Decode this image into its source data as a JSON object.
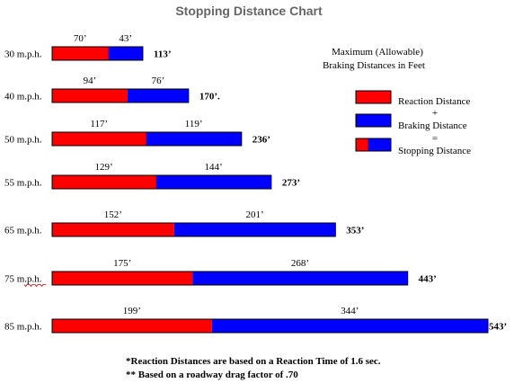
{
  "colors": {
    "reaction": "#ff0000",
    "braking": "#0000ff",
    "outline": "#000000",
    "title": "#666666"
  },
  "chart_data": {
    "type": "bar",
    "orientation": "horizontal",
    "stacked": true,
    "title": "Stopping Distance Chart",
    "subtitle_lines": [
      "Maximum  (Allowable)",
      "Braking Distances in Feet"
    ],
    "categories": [
      "30 m.p.h.",
      "40 m.p.h.",
      "50 m.p.h.",
      "55 m.p.h.",
      "65 m.p.h.",
      "75 m.p.h.",
      "85 m.p.h."
    ],
    "series": [
      {
        "name": "Reaction  Distance",
        "values": [
          70,
          94,
          117,
          129,
          152,
          175,
          199
        ]
      },
      {
        "name": "Braking Distance",
        "values": [
          43,
          76,
          119,
          144,
          201,
          268,
          344
        ]
      }
    ],
    "segment_labels": [
      [
        "70’",
        "43’"
      ],
      [
        "94’",
        "76’"
      ],
      [
        "117’",
        "119’"
      ],
      [
        "129’",
        "144’"
      ],
      [
        "152’",
        "201’"
      ],
      [
        "175’",
        "268’"
      ],
      [
        "199’",
        "344’"
      ]
    ],
    "totals": [
      113,
      170,
      236,
      273,
      353,
      443,
      543
    ],
    "total_labels": [
      "113’",
      "170’.",
      "236’",
      "273’",
      "353’",
      "443’",
      "543’"
    ],
    "legend": {
      "placement": "right",
      "items": [
        "Reaction  Distance",
        "+",
        "Braking Distance",
        "=",
        "Stopping Distance"
      ]
    },
    "xlim": [
      0,
      543
    ],
    "grid": false,
    "notes": [
      "*Reaction Distances are based on a Reaction Time of 1.6 sec.",
      "** Based on a roadway drag factor of .70"
    ]
  }
}
